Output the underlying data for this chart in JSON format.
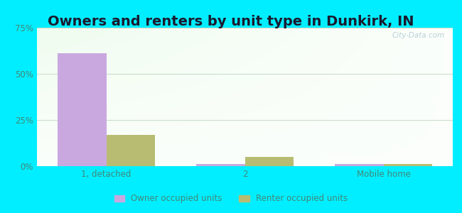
{
  "title": "Owners and renters by unit type in Dunkirk, IN",
  "categories": [
    "1, detached",
    "2",
    "Mobile home"
  ],
  "owner_values": [
    61,
    1,
    1
  ],
  "renter_values": [
    17,
    5,
    1
  ],
  "owner_color": "#c9a8e0",
  "renter_color": "#b8bc72",
  "bar_width": 0.35,
  "ylim": [
    0,
    75
  ],
  "yticks": [
    0,
    25,
    50,
    75
  ],
  "yticklabels": [
    "0%",
    "25%",
    "50%",
    "75%"
  ],
  "outer_bg": "#00eeff",
  "title_fontsize": 14,
  "tick_color": "#448877",
  "legend_labels": [
    "Owner occupied units",
    "Renter occupied units"
  ],
  "watermark": "City-Data.com",
  "grid_color": "#ccddcc"
}
